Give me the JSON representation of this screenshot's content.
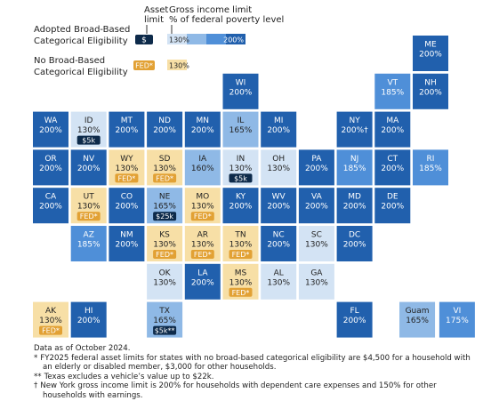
{
  "legend": {
    "asset_header": [
      "Asset",
      "limit"
    ],
    "income_header": [
      "Gross income limit",
      "% of federal poverty level"
    ],
    "bbce": {
      "label": [
        "Adopted Broad-Based",
        "Categorical Eligibility"
      ],
      "asset": "$",
      "low": "130%",
      "high": "200%"
    },
    "no_bbce": {
      "label": [
        "No Broad-Based",
        "Categorical Eligibility"
      ],
      "asset": "FED*",
      "value": "130%"
    }
  },
  "tiles": [
    {
      "state": "ME",
      "limit": "200%",
      "color": "#2160ad"
    },
    {
      "state": "WI",
      "limit": "200%",
      "color": "#2160ad"
    },
    {
      "state": "VT",
      "limit": "185%",
      "color": "#4f8fd8"
    },
    {
      "state": "NH",
      "limit": "200%",
      "color": "#2160ad"
    },
    {
      "state": "WA",
      "limit": "200%",
      "color": "#2160ad"
    },
    {
      "state": "ID",
      "limit": "130%",
      "asset": "$5k",
      "color": "#d3e3f4"
    },
    {
      "state": "MT",
      "limit": "200%",
      "color": "#2160ad"
    },
    {
      "state": "ND",
      "limit": "200%",
      "color": "#2160ad"
    },
    {
      "state": "MN",
      "limit": "200%",
      "color": "#2160ad"
    },
    {
      "state": "IL",
      "limit": "165%",
      "color": "#8fb9e6"
    },
    {
      "state": "MI",
      "limit": "200%",
      "color": "#2160ad"
    },
    {
      "state": "NY",
      "limit": "200%†",
      "color": "#2160ad"
    },
    {
      "state": "MA",
      "limit": "200%",
      "color": "#2160ad"
    },
    {
      "state": "OR",
      "limit": "200%",
      "color": "#2160ad"
    },
    {
      "state": "NV",
      "limit": "200%",
      "color": "#2160ad"
    },
    {
      "state": "WY",
      "limit": "130%",
      "asset": "FED*",
      "color": "#f7dfa6"
    },
    {
      "state": "SD",
      "limit": "130%",
      "asset": "FED*",
      "color": "#f7dfa6"
    },
    {
      "state": "IA",
      "limit": "160%",
      "color": "#8fb9e6"
    },
    {
      "state": "IN",
      "limit": "130%",
      "asset": "$5k",
      "color": "#d3e3f4"
    },
    {
      "state": "OH",
      "limit": "130%",
      "color": "#d3e3f4"
    },
    {
      "state": "PA",
      "limit": "200%",
      "color": "#2160ad"
    },
    {
      "state": "NJ",
      "limit": "185%",
      "color": "#4f8fd8"
    },
    {
      "state": "CT",
      "limit": "200%",
      "color": "#2160ad"
    },
    {
      "state": "RI",
      "limit": "185%",
      "color": "#4f8fd8"
    },
    {
      "state": "CA",
      "limit": "200%",
      "color": "#2160ad"
    },
    {
      "state": "UT",
      "limit": "130%",
      "asset": "FED*",
      "color": "#f7dfa6"
    },
    {
      "state": "CO",
      "limit": "200%",
      "color": "#2160ad"
    },
    {
      "state": "NE",
      "limit": "165%",
      "asset": "$25k",
      "color": "#8fb9e6"
    },
    {
      "state": "MO",
      "limit": "130%",
      "asset": "FED*",
      "color": "#f7dfa6"
    },
    {
      "state": "KY",
      "limit": "200%",
      "color": "#2160ad"
    },
    {
      "state": "WV",
      "limit": "200%",
      "color": "#2160ad"
    },
    {
      "state": "VA",
      "limit": "200%",
      "color": "#2160ad"
    },
    {
      "state": "MD",
      "limit": "200%",
      "color": "#2160ad"
    },
    {
      "state": "DE",
      "limit": "200%",
      "color": "#2160ad"
    },
    {
      "state": "AZ",
      "limit": "185%",
      "color": "#4f8fd8"
    },
    {
      "state": "NM",
      "limit": "200%",
      "color": "#2160ad"
    },
    {
      "state": "KS",
      "limit": "130%",
      "asset": "FED*",
      "color": "#f7dfa6"
    },
    {
      "state": "AR",
      "limit": "130%",
      "asset": "FED*",
      "color": "#f7dfa6"
    },
    {
      "state": "TN",
      "limit": "130%",
      "asset": "FED*",
      "color": "#f7dfa6"
    },
    {
      "state": "NC",
      "limit": "200%",
      "color": "#2160ad"
    },
    {
      "state": "SC",
      "limit": "130%",
      "color": "#d3e3f4"
    },
    {
      "state": "DC",
      "limit": "200%",
      "color": "#2160ad"
    },
    {
      "state": "OK",
      "limit": "130%",
      "color": "#d3e3f4"
    },
    {
      "state": "LA",
      "limit": "200%",
      "color": "#2160ad"
    },
    {
      "state": "MS",
      "limit": "130%",
      "asset": "FED*",
      "color": "#f7dfa6"
    },
    {
      "state": "AL",
      "limit": "130%",
      "color": "#d3e3f4"
    },
    {
      "state": "GA",
      "limit": "130%",
      "color": "#d3e3f4"
    },
    {
      "state": "AK",
      "limit": "130%",
      "asset": "FED*",
      "color": "#f7dfa6"
    },
    {
      "state": "HI",
      "limit": "200%",
      "color": "#2160ad"
    },
    {
      "state": "TX",
      "limit": "165%",
      "asset": "$5k**",
      "color": "#8fb9e6"
    },
    {
      "state": "FL",
      "limit": "200%",
      "color": "#2160ad"
    },
    {
      "state": "Guam",
      "limit": "165%",
      "color": "#8fb9e6"
    },
    {
      "state": "VI",
      "limit": "175%",
      "color": "#4f8fd8"
    }
  ],
  "notes": {
    "date": "Data as of October 2024.",
    "items": [
      {
        "marker": "*",
        "text": "FY2025 federal asset limits for states with no broad-based categorical eligibility are $4,500 for a household with an elderly or disabled member, $3,000 for other households."
      },
      {
        "marker": "**",
        "text": "Texas excludes a vehicle’s value up to $22k."
      },
      {
        "marker": "†",
        "text": "New York gross income limit is 200% for households with dependent care expenses and 150% for other households with earnings."
      }
    ]
  }
}
